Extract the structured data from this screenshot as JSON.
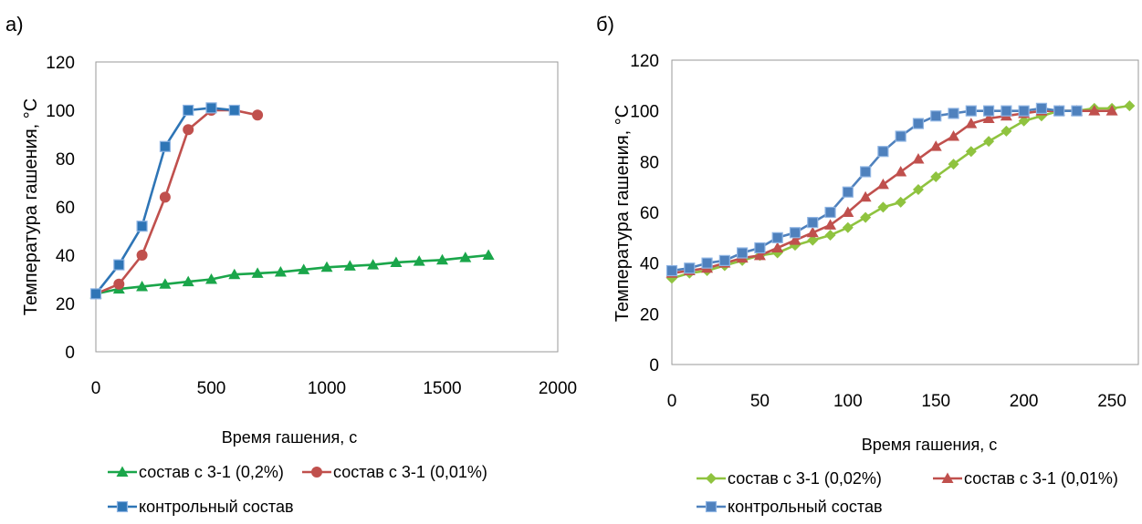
{
  "chart_data": [
    {
      "panel_label": "а)",
      "type": "line",
      "xlabel": "Время гашения, с",
      "ylabel": "Температура гашения, °С",
      "xlim": [
        0,
        2000
      ],
      "ylim": [
        0,
        120
      ],
      "x_ticks": [
        "0",
        "500",
        "1000",
        "1500",
        "2000"
      ],
      "y_ticks": [
        "0",
        "20",
        "40",
        "60",
        "80",
        "100",
        "120"
      ],
      "grid": true,
      "legend_position": "bottom",
      "series": [
        {
          "name": "состав с 3-1 (0,2%)",
          "color": "#1aa64a",
          "marker": "triangle",
          "x": [
            0,
            100,
            200,
            300,
            400,
            500,
            600,
            700,
            800,
            900,
            1000,
            1100,
            1200,
            1300,
            1400,
            1500,
            1600,
            1700
          ],
          "y": [
            24,
            26,
            27,
            28,
            29,
            30,
            32,
            32.5,
            33,
            34,
            35,
            35.5,
            36,
            37,
            37.5,
            38,
            39,
            40
          ]
        },
        {
          "name": "состав с 3-1 (0,01%)",
          "color": "#c0504d",
          "marker": "circle",
          "x": [
            0,
            100,
            200,
            300,
            400,
            500,
            600,
            700
          ],
          "y": [
            24,
            28,
            40,
            64,
            92,
            100,
            100,
            98
          ]
        },
        {
          "name": "контрольный состав",
          "color": "#2e75b6",
          "marker": "square",
          "x": [
            0,
            100,
            200,
            300,
            400,
            500,
            600
          ],
          "y": [
            24,
            36,
            52,
            85,
            100,
            101,
            100
          ]
        }
      ]
    },
    {
      "panel_label": "б)",
      "type": "line",
      "xlabel": "Время гашения, с",
      "ylabel": "Температура гашения, °С",
      "xlim": [
        0,
        265
      ],
      "ylim": [
        0,
        120
      ],
      "x_ticks": [
        "0",
        "50",
        "100",
        "150",
        "200",
        "250"
      ],
      "y_ticks": [
        "0",
        "20",
        "40",
        "60",
        "80",
        "100",
        "120"
      ],
      "grid": true,
      "legend_position": "bottom",
      "series": [
        {
          "name": "состав с 3-1 (0,02%)",
          "color": "#8fc33f",
          "marker": "diamond",
          "x": [
            0,
            10,
            20,
            30,
            40,
            50,
            60,
            70,
            80,
            90,
            100,
            110,
            120,
            130,
            140,
            150,
            160,
            170,
            180,
            190,
            200,
            210,
            220,
            230,
            240,
            250,
            260
          ],
          "y": [
            34,
            36,
            37,
            39,
            41,
            43,
            44,
            47,
            49,
            51,
            54,
            58,
            62,
            64,
            69,
            74,
            79,
            84,
            88,
            92,
            96,
            98,
            100,
            100,
            101,
            101,
            102
          ]
        },
        {
          "name": "состав  с 3-1 (0,01%)",
          "color": "#c0504d",
          "marker": "triangle",
          "x": [
            0,
            10,
            20,
            30,
            40,
            50,
            60,
            70,
            80,
            90,
            100,
            110,
            120,
            130,
            140,
            150,
            160,
            170,
            180,
            190,
            200,
            210,
            220,
            230,
            240,
            250
          ],
          "y": [
            36,
            37,
            38,
            40,
            42,
            43,
            46,
            49,
            52,
            55,
            60,
            66,
            71,
            76,
            81,
            86,
            90,
            95,
            97,
            98,
            99,
            100,
            100,
            100,
            100,
            100
          ]
        },
        {
          "name": "контрольный состав",
          "color": "#4f81bd",
          "marker": "square",
          "x": [
            0,
            10,
            20,
            30,
            40,
            50,
            60,
            70,
            80,
            90,
            100,
            110,
            120,
            130,
            140,
            150,
            160,
            170,
            180,
            190,
            200,
            210,
            220,
            230
          ],
          "y": [
            37,
            38,
            40,
            41,
            44,
            46,
            50,
            52,
            56,
            60,
            68,
            76,
            84,
            90,
            95,
            98,
            99,
            100,
            100,
            100,
            100,
            101,
            100,
            100
          ]
        }
      ]
    }
  ]
}
